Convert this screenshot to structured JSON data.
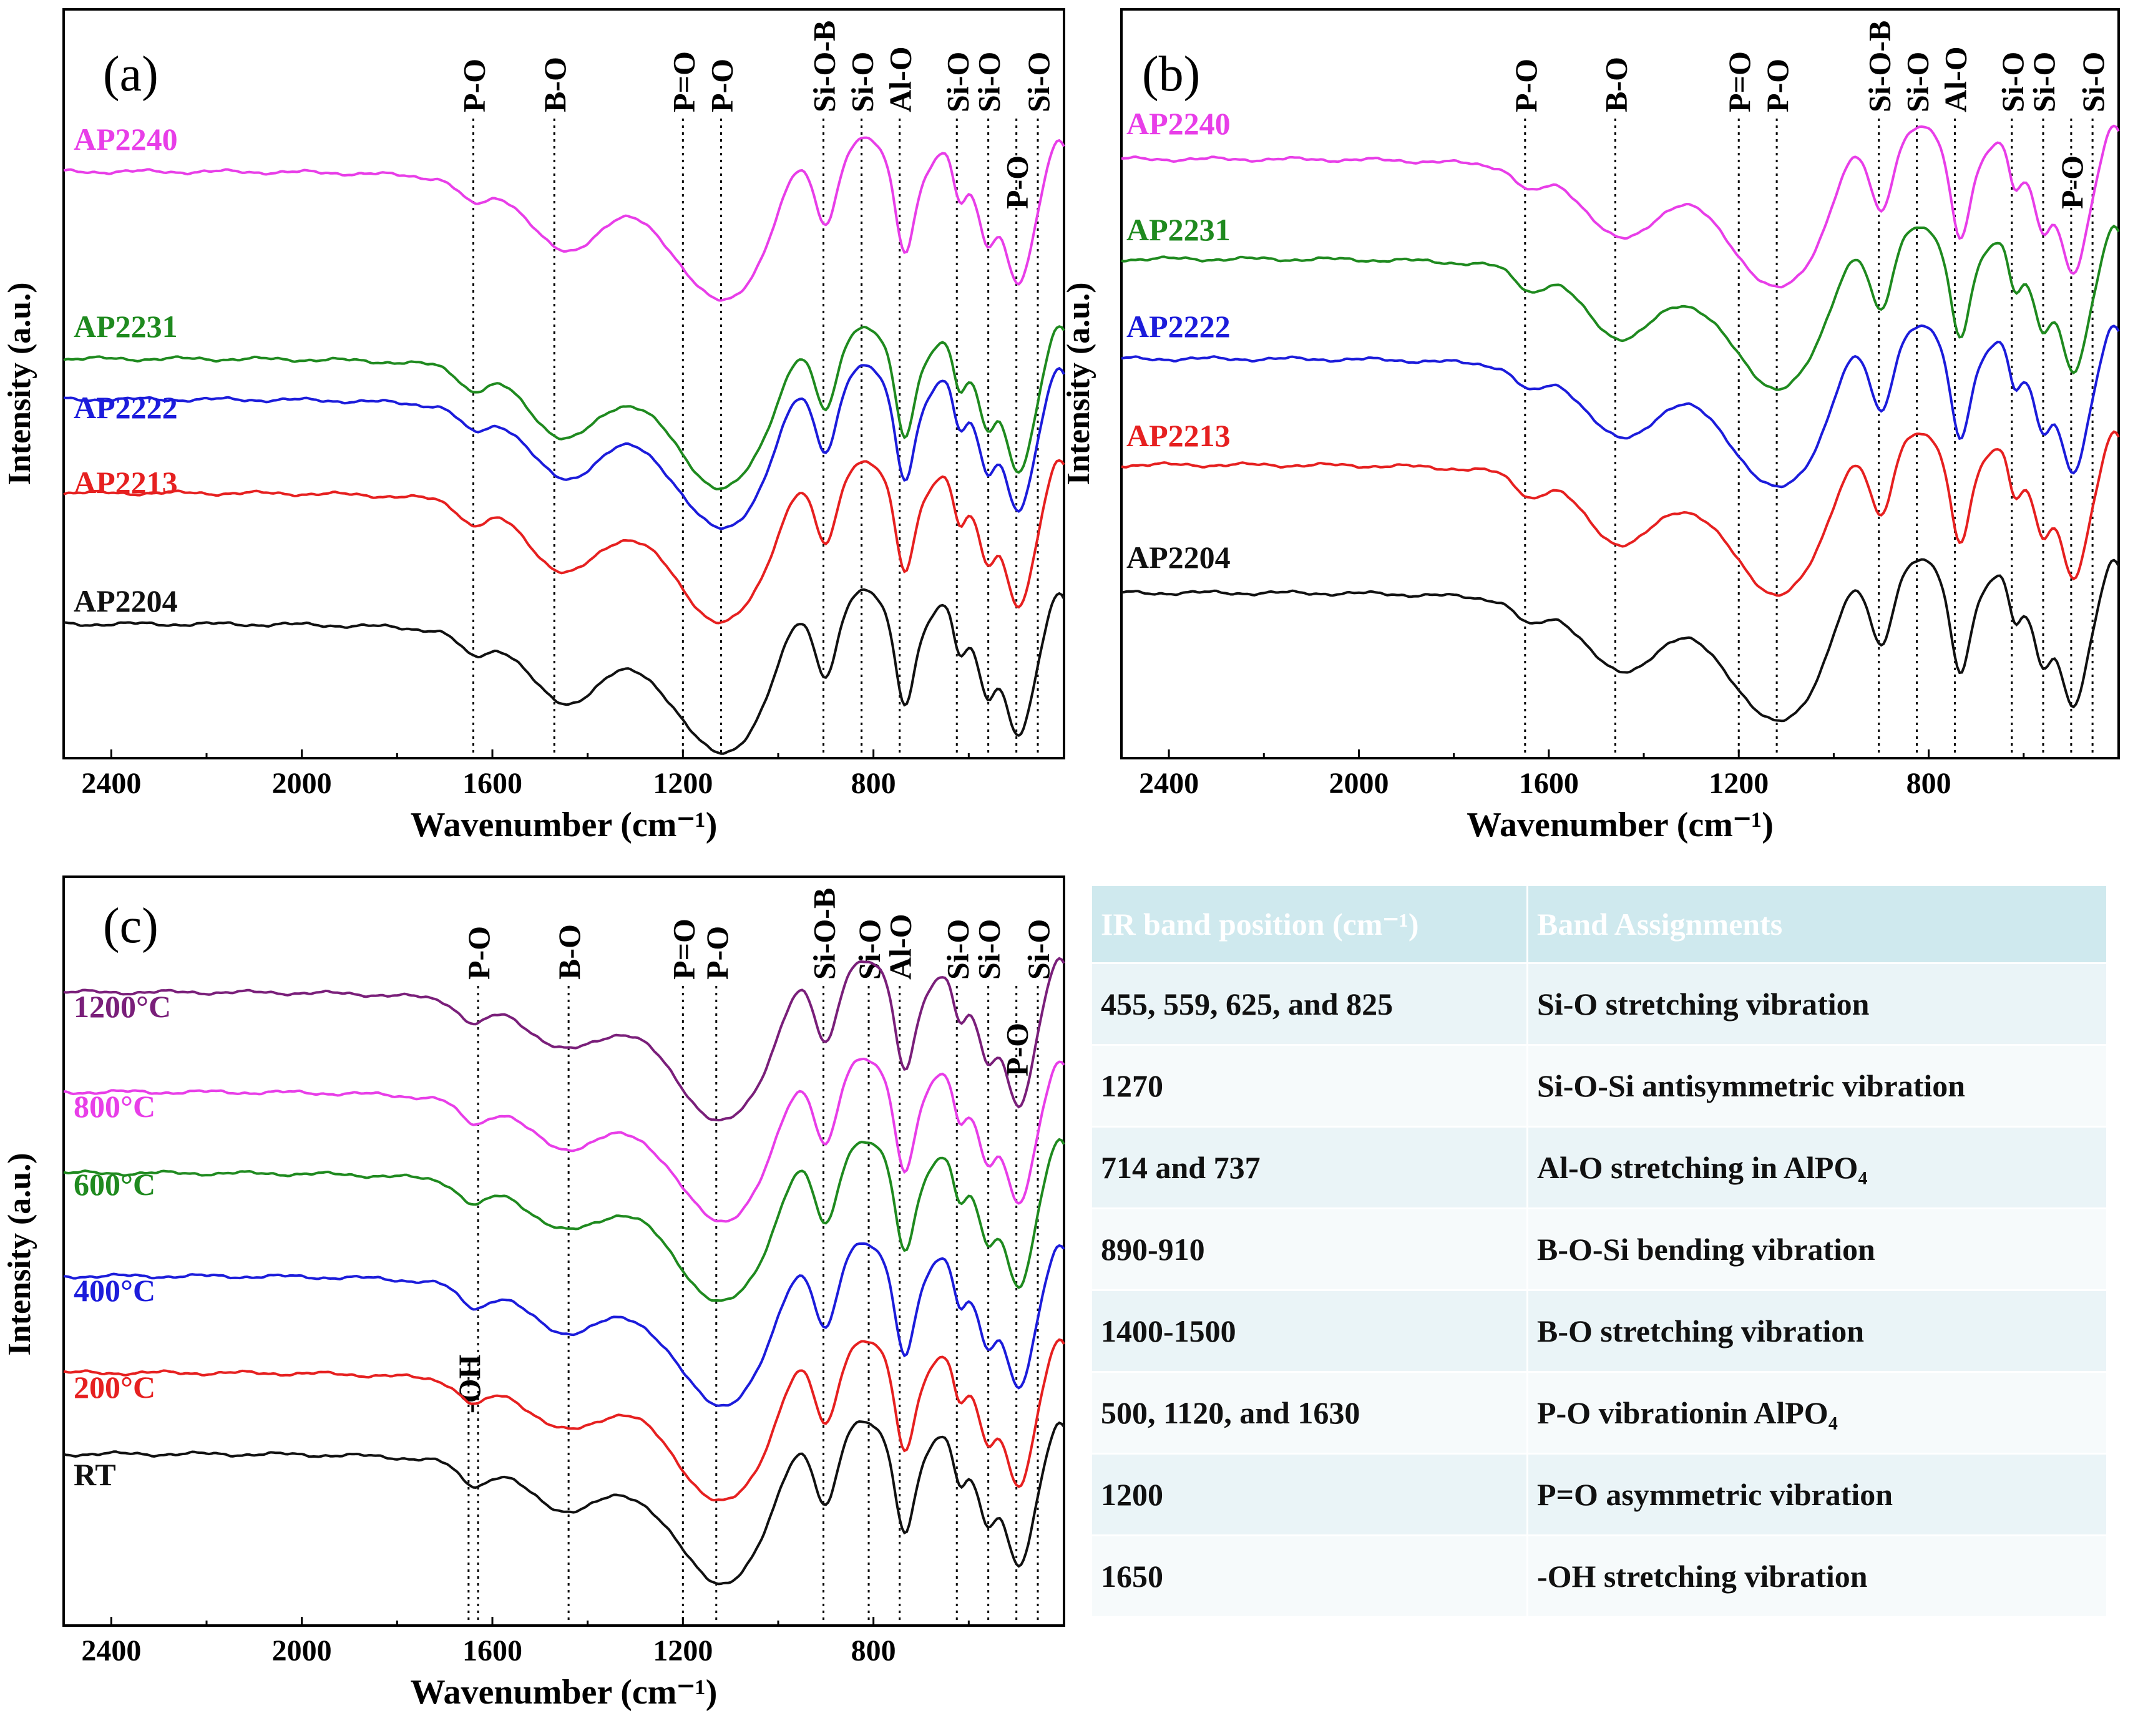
{
  "chart_data": [
    {
      "type": "line",
      "panel": "(a)",
      "xlabel": "Wavenumber (cm⁻¹)",
      "ylabel": "Intensity (a.u.)",
      "xlim": [
        2500,
        400
      ],
      "xticks": [
        2400,
        2000,
        1600,
        1200,
        800
      ],
      "series": [
        {
          "name": "AP2240",
          "color": "#e83ee8"
        },
        {
          "name": "AP2231",
          "color": "#1f8a1f"
        },
        {
          "name": "AP2222",
          "color": "#1c1cdb"
        },
        {
          "name": "AP2213",
          "color": "#e62020"
        },
        {
          "name": "AP2204",
          "color": "#111111"
        }
      ],
      "band_lines": [
        {
          "label": "P-O",
          "x": 1640
        },
        {
          "label": "B-O",
          "x": 1470
        },
        {
          "label": "P=O",
          "x": 1200
        },
        {
          "label": "P-O",
          "x": 1120
        },
        {
          "label": "Si-O-B",
          "x": 905
        },
        {
          "label": "Si-O",
          "x": 825
        },
        {
          "label": "Al-O",
          "x": 745
        },
        {
          "label": "Si-O",
          "x": 625
        },
        {
          "label": "P-O",
          "x": 500
        },
        {
          "label": "Si-O",
          "x": 559
        },
        {
          "label": "Si-O",
          "x": 455
        }
      ]
    },
    {
      "type": "line",
      "panel": "(b)",
      "xlabel": "Wavenumber (cm⁻¹)",
      "ylabel": "Intensity (a.u.)",
      "xlim": [
        2500,
        400
      ],
      "xticks": [
        2400,
        2000,
        1600,
        1200,
        800
      ],
      "series": [
        {
          "name": "AP2240",
          "color": "#e83ee8"
        },
        {
          "name": "AP2231",
          "color": "#1f8a1f"
        },
        {
          "name": "AP2222",
          "color": "#1c1cdb"
        },
        {
          "name": "AP2213",
          "color": "#e62020"
        },
        {
          "name": "AP2204",
          "color": "#111111"
        }
      ],
      "band_lines": [
        {
          "label": "P-O",
          "x": 1650
        },
        {
          "label": "B-O",
          "x": 1460
        },
        {
          "label": "P=O",
          "x": 1200
        },
        {
          "label": "P-O",
          "x": 1120
        },
        {
          "label": "Si-O-B",
          "x": 905
        },
        {
          "label": "Si-O",
          "x": 825
        },
        {
          "label": "Al-O",
          "x": 745
        },
        {
          "label": "Si-O",
          "x": 625
        },
        {
          "label": "P-O",
          "x": 500
        },
        {
          "label": "Si-O",
          "x": 559
        },
        {
          "label": "Si-O",
          "x": 455
        }
      ]
    },
    {
      "type": "line",
      "panel": "(c)",
      "xlabel": "Wavenumber (cm⁻¹)",
      "ylabel": "Intensity (a.u.)",
      "xlim": [
        2500,
        400
      ],
      "xticks": [
        2400,
        2000,
        1600,
        1200,
        800
      ],
      "series": [
        {
          "name": "1200°C",
          "color": "#7a1f7a"
        },
        {
          "name": "800°C",
          "color": "#e83ee8"
        },
        {
          "name": "600°C",
          "color": "#1f8a1f"
        },
        {
          "name": "400°C",
          "color": "#1c1cdb"
        },
        {
          "name": "200°C",
          "color": "#e62020"
        },
        {
          "name": "RT",
          "color": "#111111"
        }
      ],
      "band_lines": [
        {
          "label": "P-O",
          "x": 1630
        },
        {
          "label": "B-O",
          "x": 1440
        },
        {
          "label": "P=O",
          "x": 1200
        },
        {
          "label": "P-O",
          "x": 1130
        },
        {
          "label": "Si-O-B",
          "x": 905
        },
        {
          "label": "Si-O",
          "x": 810
        },
        {
          "label": "Al-O",
          "x": 745
        },
        {
          "label": "Si-O",
          "x": 625
        },
        {
          "label": "P-O",
          "x": 500
        },
        {
          "label": "Si-O",
          "x": 559
        },
        {
          "label": "Si-O",
          "x": 455
        },
        {
          "label": "-OH",
          "x": 1650
        }
      ]
    },
    {
      "type": "table",
      "columns": [
        "IR band position (cm⁻¹)",
        "Band Assignments"
      ],
      "rows": [
        [
          "455, 559, 625, and 825",
          "Si-O stretching vibration"
        ],
        [
          "1270",
          "Si-O-Si antisymmetric vibration"
        ],
        [
          "714 and 737",
          "Al-O stretching in AlPO₄"
        ],
        [
          "890-910",
          "B-O-Si bending vibration"
        ],
        [
          "1400-1500",
          "B-O stretching vibration"
        ],
        [
          "500, 1120, and 1630",
          "P-O vibrationin AlPO₄"
        ],
        [
          "1200",
          "P=O asymmetric vibration"
        ],
        [
          "1650",
          "-OH stretching vibration"
        ]
      ]
    }
  ]
}
